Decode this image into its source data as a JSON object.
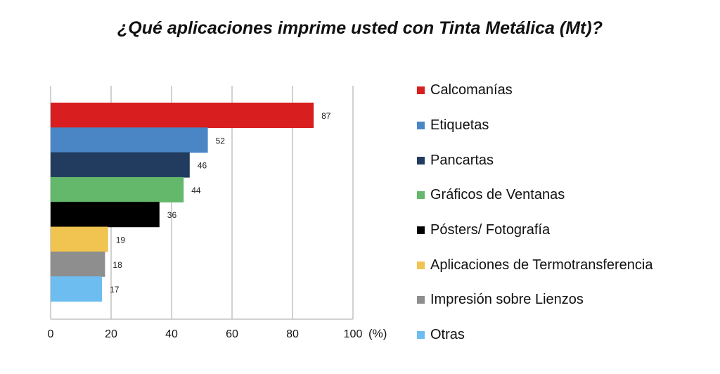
{
  "chart_data": {
    "type": "bar",
    "orientation": "horizontal",
    "title": "¿Qué aplicaciones imprime usted con Tinta Metálica (Mt)?",
    "xlabel": "(%)",
    "ylabel": "",
    "xlim": [
      0,
      100
    ],
    "xticks": [
      "0",
      "20",
      "40",
      "60",
      "80",
      "100"
    ],
    "grid": true,
    "legend_position": "right",
    "categories": [
      "Calcomanías",
      "Etiquetas",
      "Pancartas",
      "Gráficos de Ventanas",
      "Pósters/ Fotografía",
      "Aplicaciones de Termotransferencia",
      "Impresión sobre Lienzos",
      "Otras"
    ],
    "values": [
      87,
      52,
      46,
      44,
      36,
      19,
      18,
      17
    ],
    "value_labels": [
      "87",
      "52",
      "46",
      "44",
      "36",
      "19",
      "18",
      "17"
    ],
    "colors": [
      "#d81e1e",
      "#4a86c5",
      "#213c5e",
      "#63b86c",
      "#000000",
      "#f1c451",
      "#8e8e8e",
      "#6dbdf0"
    ]
  }
}
